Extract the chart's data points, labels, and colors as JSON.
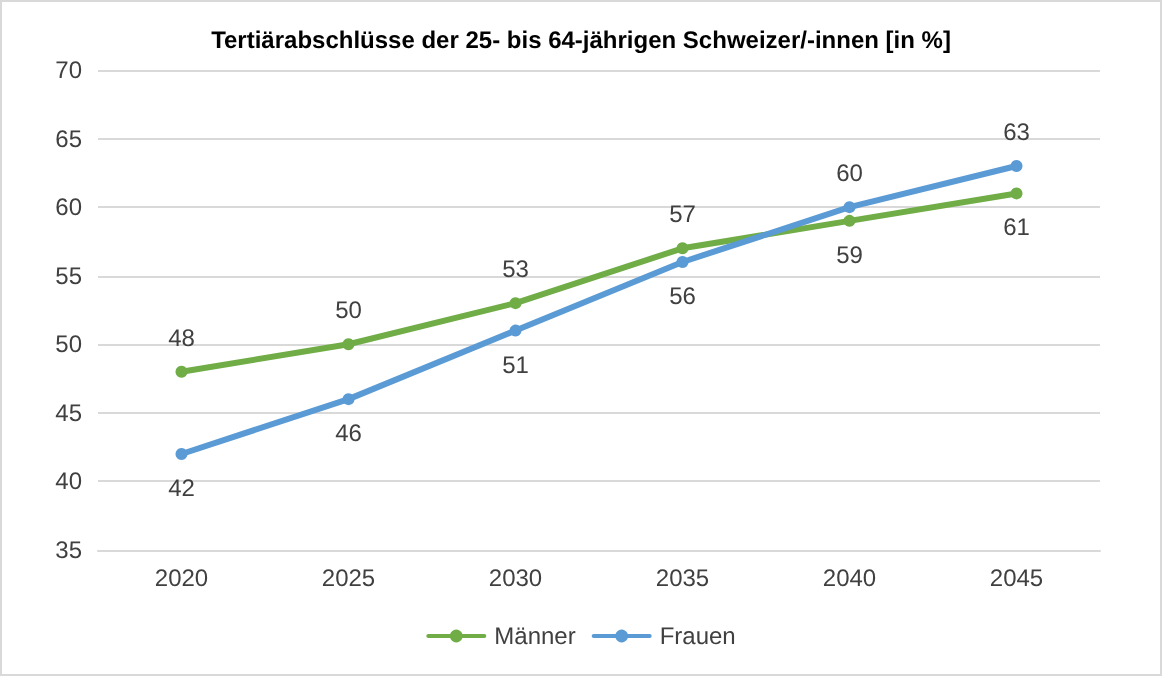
{
  "chart_data": {
    "type": "line",
    "title": "Tertiärabschlüsse der 25- bis 64-jährigen Schweizer/-innen [in %]",
    "categories": [
      "2020",
      "2025",
      "2030",
      "2035",
      "2040",
      "2045"
    ],
    "series": [
      {
        "name": "Männer",
        "color": "#70ad47",
        "values": [
          48,
          50,
          53,
          57,
          59,
          61
        ]
      },
      {
        "name": "Frauen",
        "color": "#5b9bd5",
        "values": [
          42,
          46,
          51,
          56,
          60,
          63
        ]
      }
    ],
    "ylim": [
      35,
      70
    ],
    "yticks": [
      35,
      40,
      45,
      50,
      55,
      60,
      65,
      70
    ],
    "grid": "y",
    "legend": "bottom",
    "marker": "circle",
    "line_style": "solid",
    "data_labels": true
  }
}
